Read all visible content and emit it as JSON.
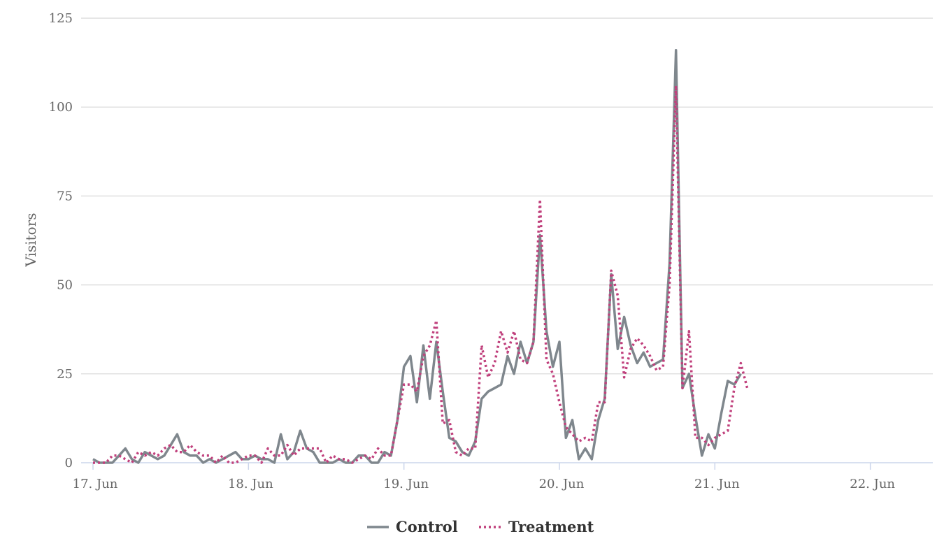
{
  "chart_data": {
    "type": "line",
    "ylabel": "Visitors",
    "xlabel": "",
    "ylim": [
      0,
      125
    ],
    "yticks": [
      0,
      25,
      50,
      75,
      100,
      125
    ],
    "xlim": [
      "2022-06-17 00:00",
      "2022-06-22 09:00"
    ],
    "xticks": [
      {
        "date": "2022-06-17 00:00",
        "label": "17. Jun"
      },
      {
        "date": "2022-06-18 00:00",
        "label": "18. Jun"
      },
      {
        "date": "2022-06-19 00:00",
        "label": "19. Jun"
      },
      {
        "date": "2022-06-20 00:00",
        "label": "20. Jun"
      },
      {
        "date": "2022-06-21 00:00",
        "label": "21. Jun"
      },
      {
        "date": "2022-06-22 00:00",
        "label": "22. Jun"
      }
    ],
    "grid": true,
    "legend": "bottom-center",
    "start": "2022-06-17 00:00",
    "interval_hours": 1,
    "series": [
      {
        "name": "Control",
        "color": "#7f878d",
        "dash": "solid",
        "values": [
          1,
          0,
          0,
          0,
          2,
          4,
          1,
          0,
          3,
          2,
          1,
          2,
          5,
          8,
          3,
          2,
          2,
          0,
          1,
          0,
          1,
          2,
          3,
          1,
          1,
          2,
          1,
          1,
          0,
          8,
          1,
          3,
          9,
          4,
          3,
          0,
          0,
          0,
          1,
          0,
          0,
          2,
          2,
          0,
          0,
          3,
          2,
          12,
          27,
          30,
          17,
          33,
          18,
          34,
          20,
          7,
          6,
          3,
          2,
          6,
          18,
          20,
          21,
          22,
          30,
          25,
          34,
          28,
          34,
          64,
          37,
          27,
          34,
          7,
          12,
          1,
          4,
          1,
          12,
          18,
          53,
          32,
          41,
          33,
          28,
          31,
          27,
          28,
          29,
          56,
          116,
          21,
          25,
          13,
          2,
          8,
          4,
          14,
          23,
          22,
          25
        ]
      },
      {
        "name": "Treatment",
        "color": "#c0407c",
        "dash": "dotted",
        "values": [
          0,
          0,
          0,
          2,
          2,
          1,
          0,
          3,
          2,
          3,
          2,
          4,
          5,
          3,
          3,
          5,
          3,
          2,
          2,
          0,
          2,
          0,
          0,
          1,
          2,
          2,
          0,
          4,
          2,
          2,
          5,
          2,
          4,
          4,
          4,
          4,
          0,
          2,
          1,
          1,
          0,
          1,
          2,
          1,
          4,
          2,
          2,
          12,
          22,
          22,
          20,
          30,
          33,
          40,
          11,
          12,
          3,
          2,
          4,
          4,
          33,
          24,
          28,
          37,
          31,
          37,
          29,
          28,
          34,
          74,
          29,
          25,
          17,
          10,
          8,
          6,
          7,
          6,
          17,
          17,
          54,
          47,
          24,
          32,
          35,
          33,
          30,
          26,
          27,
          50,
          106,
          21,
          37,
          7,
          7,
          5,
          7,
          8,
          9,
          21,
          28,
          21
        ]
      }
    ]
  }
}
